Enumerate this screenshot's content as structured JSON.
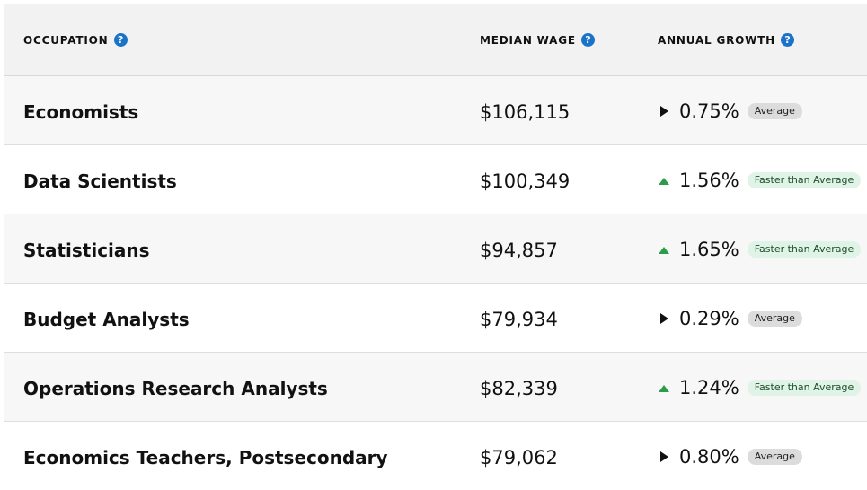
{
  "header": {
    "occupation_label": "OCCUPATION",
    "wage_label": "MEDIAN WAGE",
    "growth_label": "ANNUAL GROWTH",
    "help_glyph": "?"
  },
  "rows": [
    {
      "occupation": "Economists",
      "wage": "$106,115",
      "growth": "0.75%",
      "trend": "steady",
      "badge": "Average"
    },
    {
      "occupation": "Data Scientists",
      "wage": "$100,349",
      "growth": "1.56%",
      "trend": "up",
      "badge": "Faster than Average"
    },
    {
      "occupation": "Statisticians",
      "wage": "$94,857",
      "growth": "1.65%",
      "trend": "up",
      "badge": "Faster than Average"
    },
    {
      "occupation": "Budget Analysts",
      "wage": "$79,934",
      "growth": "0.29%",
      "trend": "steady",
      "badge": "Average"
    },
    {
      "occupation": "Operations Research Analysts",
      "wage": "$82,339",
      "growth": "1.24%",
      "trend": "up",
      "badge": "Faster than Average"
    },
    {
      "occupation": "Economics Teachers, Postsecondary",
      "wage": "$79,062",
      "growth": "0.80%",
      "trend": "steady",
      "badge": "Average"
    }
  ],
  "colors": {
    "up_arrow": "#2a9d4a",
    "steady_arrow": "#111111",
    "help_icon": "#1a73c9"
  }
}
